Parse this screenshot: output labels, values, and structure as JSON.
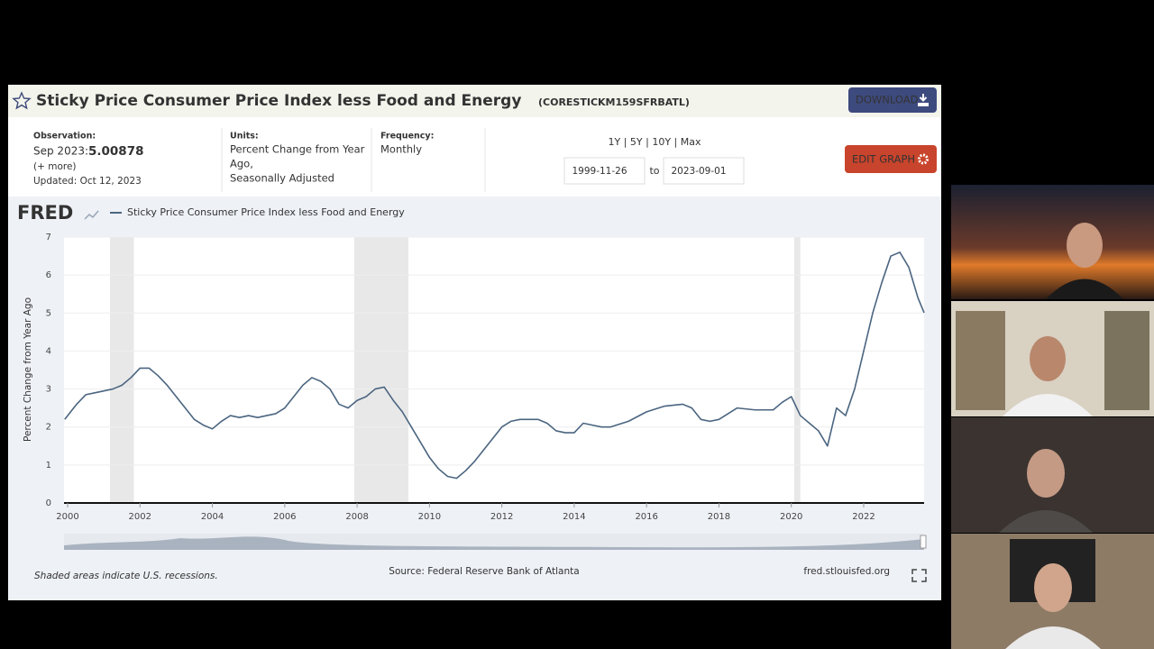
{
  "header": {
    "title": "Sticky Price Consumer Price Index less Food and Energy",
    "series_id": "(CORESTICKM159SFRBATL)",
    "download": "DOWNLOAD",
    "observation_label": "Observation:",
    "observation_date": "Sep 2023:",
    "observation_value": "5.00878",
    "more": "(+ more)",
    "updated": "Updated: Oct 12, 2023",
    "units_label": "Units:",
    "units": [
      "Percent Change from Year",
      "Ago,",
      "Seasonally Adjusted"
    ],
    "frequency_label": "Frequency:",
    "frequency": "Monthly",
    "ranges": "1Y | 5Y | 10Y | Max",
    "date_start": "1999-11-26",
    "to": "to",
    "date_end": "2023-09-01",
    "edit": "EDIT GRAPH",
    "logo": "FRED"
  },
  "chart_data": {
    "type": "line",
    "ylabel": "Percent Change from Year Ago",
    "series": [
      {
        "name": "Sticky Price Consumer Price Index less Food and Energy",
        "color": "#4b6580",
        "x": [
          1999.92,
          2000.25,
          2000.5,
          2000.75,
          2001.0,
          2001.25,
          2001.5,
          2001.75,
          2002.0,
          2002.25,
          2002.5,
          2002.75,
          2003.0,
          2003.25,
          2003.5,
          2003.75,
          2004.0,
          2004.25,
          2004.5,
          2004.75,
          2005.0,
          2005.25,
          2005.5,
          2005.75,
          2006.0,
          2006.25,
          2006.5,
          2006.75,
          2007.0,
          2007.25,
          2007.5,
          2007.75,
          2008.0,
          2008.25,
          2008.5,
          2008.75,
          2009.0,
          2009.25,
          2009.5,
          2009.75,
          2010.0,
          2010.25,
          2010.5,
          2010.75,
          2011.0,
          2011.25,
          2011.5,
          2011.75,
          2012.0,
          2012.25,
          2012.5,
          2012.75,
          2013.0,
          2013.25,
          2013.5,
          2013.75,
          2014.0,
          2014.25,
          2014.5,
          2014.75,
          2015.0,
          2015.5,
          2016.0,
          2016.5,
          2017.0,
          2017.25,
          2017.5,
          2017.75,
          2018.0,
          2018.5,
          2019.0,
          2019.5,
          2019.75,
          2020.0,
          2020.25,
          2020.5,
          2020.75,
          2021.0,
          2021.25,
          2021.5,
          2021.75,
          2022.0,
          2022.25,
          2022.5,
          2022.75,
          2023.0,
          2023.25,
          2023.5,
          2023.67
        ],
        "values": [
          2.2,
          2.6,
          2.85,
          2.9,
          2.95,
          3.0,
          3.1,
          3.3,
          3.55,
          3.55,
          3.35,
          3.1,
          2.8,
          2.5,
          2.2,
          2.05,
          1.95,
          2.15,
          2.3,
          2.25,
          2.3,
          2.25,
          2.3,
          2.35,
          2.5,
          2.8,
          3.1,
          3.3,
          3.2,
          3.0,
          2.6,
          2.5,
          2.7,
          2.8,
          3.0,
          3.05,
          2.7,
          2.4,
          2.0,
          1.6,
          1.2,
          0.9,
          0.7,
          0.65,
          0.85,
          1.1,
          1.4,
          1.7,
          2.0,
          2.15,
          2.2,
          2.2,
          2.2,
          2.1,
          1.9,
          1.85,
          1.85,
          2.1,
          2.05,
          2.0,
          2.0,
          2.15,
          2.4,
          2.55,
          2.6,
          2.5,
          2.2,
          2.15,
          2.2,
          2.5,
          2.45,
          2.45,
          2.65,
          2.8,
          2.3,
          2.1,
          1.9,
          1.5,
          2.5,
          2.3,
          3.0,
          4.0,
          5.0,
          5.8,
          6.5,
          6.6,
          6.2,
          5.4,
          5.00878
        ]
      }
    ],
    "recessions": [
      [
        2001.17,
        2001.83
      ],
      [
        2007.92,
        2009.42
      ],
      [
        2020.08,
        2020.25
      ]
    ],
    "xlim": [
      1999.9,
      2023.67
    ],
    "ylim": [
      0,
      7
    ],
    "xticks": [
      2000,
      2002,
      2004,
      2006,
      2008,
      2010,
      2012,
      2014,
      2016,
      2018,
      2020,
      2022
    ],
    "yticks": [
      0,
      1,
      2,
      3,
      4,
      5,
      6,
      7
    ],
    "grid": true,
    "note": "Shaded areas indicate U.S. recessions.",
    "source": "Source: Federal Reserve Bank of Atlanta",
    "site": "fred.stlouisfed.org"
  }
}
